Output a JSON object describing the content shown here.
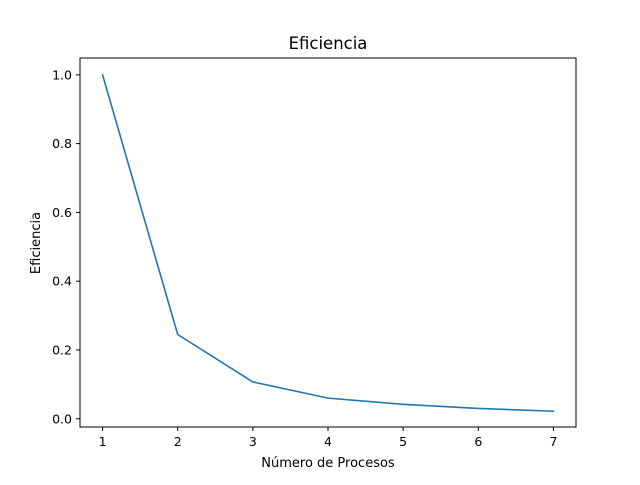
{
  "chart_data": {
    "type": "line",
    "title": "Eficiencia",
    "xlabel": "Número de Procesos",
    "ylabel": "Eficiencia",
    "x": [
      1,
      2,
      3,
      4,
      5,
      6,
      7
    ],
    "series": [
      {
        "values": [
          1.0,
          0.245,
          0.107,
          0.06,
          0.042,
          0.03,
          0.022
        ],
        "color": "#1f77b4"
      }
    ],
    "xlim": [
      0.7,
      7.3
    ],
    "ylim": [
      -0.0239,
      1.0489
    ],
    "xticks": [
      1,
      2,
      3,
      4,
      5,
      6,
      7
    ],
    "xtick_labels": [
      "1",
      "2",
      "3",
      "4",
      "5",
      "6",
      "7"
    ],
    "yticks": [
      0.0,
      0.2,
      0.4,
      0.6,
      0.8,
      1.0
    ],
    "ytick_labels": [
      "0.0",
      "0.2",
      "0.4",
      "0.6",
      "0.8",
      "1.0"
    ],
    "grid": false,
    "legend": false
  }
}
